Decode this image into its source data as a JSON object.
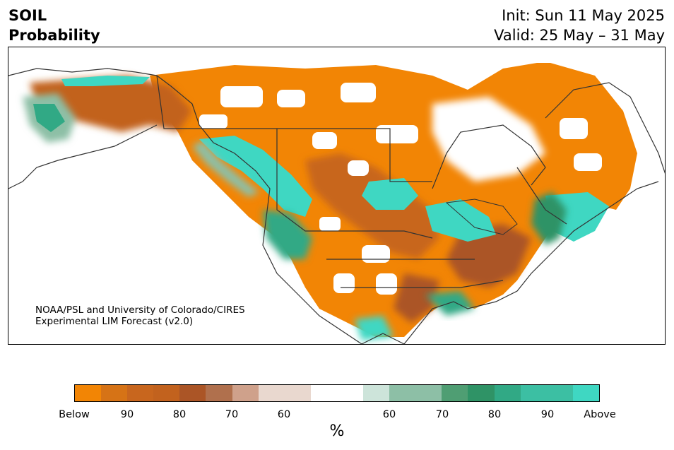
{
  "header": {
    "variable": "SOIL",
    "product": "Probability",
    "init": "Init: Sun 11 May 2025",
    "valid": "Valid: 25 May – 31 May"
  },
  "credit": {
    "line1": "NOAA/PSL and University of Colorado/CIRES",
    "line2": "Experimental LIM Forecast (v2.0)"
  },
  "colorbar": {
    "colors": [
      "#f28505",
      "#d67316",
      "#c8661e",
      "#c2621e",
      "#ab5526",
      "#b0704d",
      "#cfa18b",
      "#e9d8cf",
      "#e9d8cf",
      "#ffffff",
      "#ffffff",
      "#cde4da",
      "#8dbfa6",
      "#8dbfa6",
      "#4f9e73",
      "#2f9366",
      "#31a985",
      "#3cbfa3",
      "#3cbfa3",
      "#3fd7c2"
    ],
    "ticks": [
      "Below",
      "90",
      "80",
      "70",
      "60",
      "60",
      "70",
      "80",
      "90",
      "Above"
    ],
    "unit": "%"
  },
  "map": {
    "below_color": "#f28505",
    "above_color": "#3fd7c2",
    "coastline_color": "#333333"
  }
}
